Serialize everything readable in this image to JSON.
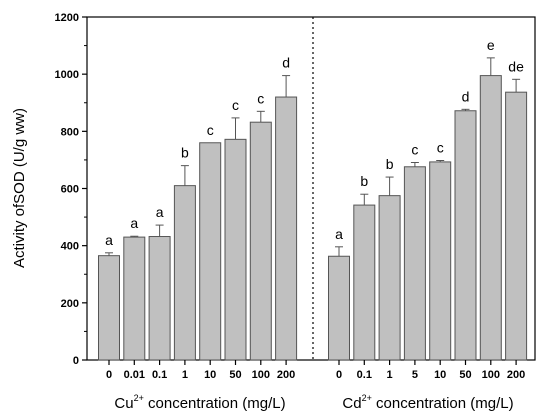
{
  "chart_data": {
    "type": "bar",
    "title": "",
    "ylabel": "Activity ofSOD (U/g ww)",
    "ylim": [
      0,
      1200
    ],
    "yticks": [
      0,
      200,
      400,
      600,
      800,
      1000,
      1200
    ],
    "bar_color": "#c0c0c0",
    "groups": [
      {
        "name": "Cu",
        "xlabel_prefix": "Cu",
        "xlabel_sup": "2+",
        "xlabel_suffix": " concentration (mg/L)",
        "categories": [
          "0",
          "0.01",
          "0.1",
          "1",
          "10",
          "50",
          "100",
          "200"
        ],
        "values": [
          365,
          430,
          432,
          610,
          760,
          772,
          832,
          920
        ],
        "errors": [
          10,
          3,
          40,
          70,
          0,
          75,
          38,
          75
        ],
        "letters": [
          "a",
          "a",
          "a",
          "b",
          "c",
          "c",
          "c",
          "d"
        ]
      },
      {
        "name": "Cd",
        "xlabel_prefix": "Cd",
        "xlabel_sup": "2+",
        "xlabel_suffix": " concentration (mg/L)",
        "categories": [
          "0",
          "0.1",
          "1",
          "5",
          "10",
          "50",
          "100",
          "200"
        ],
        "values": [
          363,
          542,
          575,
          676,
          693,
          872,
          995,
          937
        ],
        "errors": [
          33,
          38,
          65,
          15,
          5,
          5,
          62,
          45
        ],
        "letters": [
          "a",
          "b",
          "b",
          "c",
          "c",
          "d",
          "e",
          "de"
        ]
      }
    ]
  }
}
